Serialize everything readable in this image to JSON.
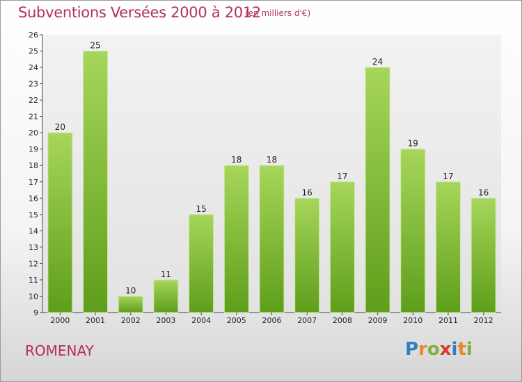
{
  "title": "Subventions Versées 2000 à 2012",
  "subtitle": "(en milliers d'€)",
  "town": "ROMENAY",
  "logo": {
    "letters": [
      "P",
      "r",
      "o",
      "x",
      "i",
      "t",
      "i"
    ],
    "colors": [
      "#2f7fc1",
      "#e9872b",
      "#7bb33a",
      "#d93a2b",
      "#2f7fc1",
      "#e9872b",
      "#7bb33a"
    ]
  },
  "colors": {
    "bar_top": "#a6d65a",
    "bar_bottom": "#5e9e1a",
    "accent": "#b5305a"
  },
  "chart_data": {
    "type": "bar",
    "title": "Subventions Versées 2000 à 2012",
    "subtitle": "(en milliers d'€)",
    "categories": [
      "2000",
      "2001",
      "2002",
      "2003",
      "2004",
      "2005",
      "2006",
      "2007",
      "2008",
      "2009",
      "2010",
      "2011",
      "2012"
    ],
    "values": [
      20,
      25,
      10,
      11,
      15,
      18,
      18,
      16,
      17,
      24,
      19,
      17,
      16
    ],
    "ylim": [
      9,
      26
    ],
    "yticks": [
      9,
      10,
      11,
      12,
      13,
      14,
      15,
      16,
      17,
      18,
      19,
      20,
      21,
      22,
      23,
      24,
      25,
      26
    ],
    "grid": false,
    "data_labels": true
  }
}
